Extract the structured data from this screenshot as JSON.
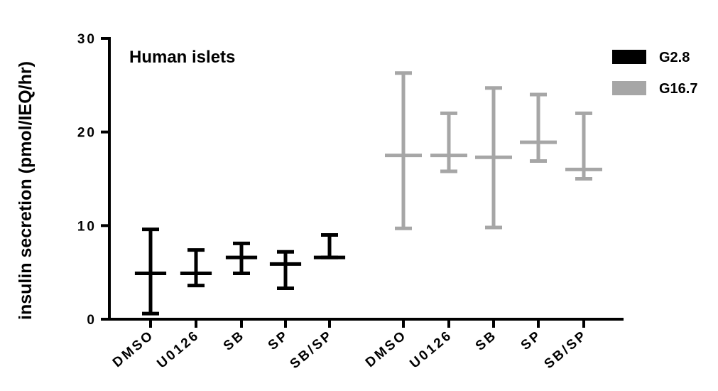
{
  "chart_data": {
    "type": "error-bar",
    "title": "Human islets",
    "ylabel": "insulin secretion  (pmol/IEQ/hr)",
    "xlabel": "",
    "ylim": [
      0,
      30
    ],
    "yticks": [
      0,
      10,
      20,
      30
    ],
    "ytick_labels": [
      "0",
      "10",
      "20",
      "30"
    ],
    "categories": [
      "DMSO",
      "U0126",
      "SB",
      "SP",
      "SB/SP"
    ],
    "legend_position": "top-right",
    "grid": false,
    "series": [
      {
        "name": "G2.8",
        "color": "#000000",
        "mean": [
          4.9,
          4.9,
          6.6,
          5.9,
          6.6
        ],
        "lower": [
          0.6,
          3.6,
          4.9,
          3.3,
          6.6
        ],
        "upper": [
          9.6,
          7.4,
          8.1,
          7.2,
          9.0
        ]
      },
      {
        "name": "G16.7",
        "color": "#a6a6a6",
        "mean": [
          17.5,
          17.5,
          17.3,
          18.9,
          16.0
        ],
        "lower": [
          9.7,
          15.8,
          9.8,
          16.9,
          15.0
        ],
        "upper": [
          26.3,
          22.0,
          24.7,
          24.0,
          22.0
        ]
      }
    ]
  }
}
